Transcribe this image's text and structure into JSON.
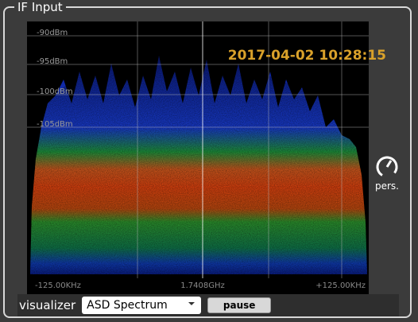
{
  "panel": {
    "title": "IF Input"
  },
  "plot": {
    "y_labels": [
      "-90dBm",
      "-95dBm",
      "-100dBm",
      "-105dBm"
    ],
    "x_labels": [
      "-125.00KHz",
      "1.7408GHz",
      "+125.00KHz"
    ],
    "timestamp": "2017-04-02 10:28:15",
    "persistence_label": "pers."
  },
  "controls": {
    "visualizer_label": "visualizer",
    "visualizer_value": "ASD Spectrum",
    "pause_button": "pause"
  }
}
